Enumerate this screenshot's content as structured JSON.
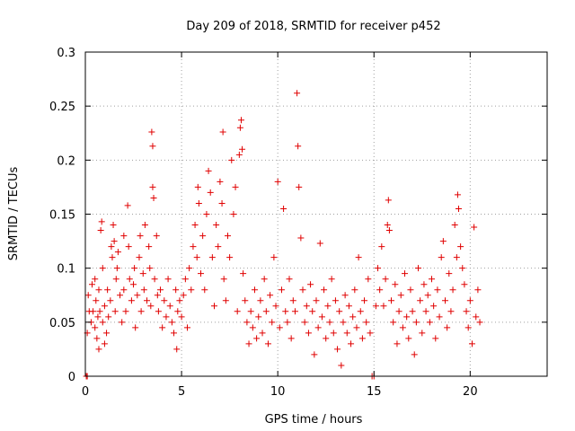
{
  "chart_data": {
    "type": "scatter",
    "title": "Day 209 of 2018, SRMTID for receiver p452",
    "xlabel": "GPS time / hours",
    "ylabel": "SRMTID / TECUs",
    "xlim": [
      0,
      24
    ],
    "ylim": [
      0,
      0.3
    ],
    "x_ticks": [
      0,
      5,
      10,
      15,
      20
    ],
    "x_tick_labels": [
      "0",
      "5",
      "10",
      "15",
      "20"
    ],
    "y_ticks": [
      0,
      0.05,
      0.1,
      0.15,
      0.2,
      0.25,
      0.3
    ],
    "y_tick_labels": [
      "0",
      "0.05",
      "0.1",
      "0.15",
      "0.2",
      "0.25",
      "0.3"
    ],
    "grid": true,
    "marker": "+",
    "color": "#e00000",
    "series": [
      {
        "name": "SRMTID",
        "points": [
          [
            0.05,
            0.0
          ],
          [
            0.1,
            0.0
          ],
          [
            0.1,
            0.04
          ],
          [
            0.15,
            0.075
          ],
          [
            0.2,
            0.06
          ],
          [
            0.3,
            0.05
          ],
          [
            0.35,
            0.085
          ],
          [
            0.4,
            0.06
          ],
          [
            0.5,
            0.045
          ],
          [
            0.5,
            0.09
          ],
          [
            0.55,
            0.07
          ],
          [
            0.6,
            0.035
          ],
          [
            0.65,
            0.055
          ],
          [
            0.7,
            0.025
          ],
          [
            0.7,
            0.08
          ],
          [
            0.75,
            0.06
          ],
          [
            0.8,
            0.135
          ],
          [
            0.85,
            0.143
          ],
          [
            0.9,
            0.05
          ],
          [
            0.9,
            0.1
          ],
          [
            1.0,
            0.065
          ],
          [
            1.0,
            0.03
          ],
          [
            1.1,
            0.04
          ],
          [
            1.15,
            0.08
          ],
          [
            1.2,
            0.055
          ],
          [
            1.3,
            0.07
          ],
          [
            1.35,
            0.12
          ],
          [
            1.4,
            0.11
          ],
          [
            1.45,
            0.14
          ],
          [
            1.5,
            0.125
          ],
          [
            1.55,
            0.06
          ],
          [
            1.6,
            0.09
          ],
          [
            1.65,
            0.1
          ],
          [
            1.7,
            0.115
          ],
          [
            1.8,
            0.075
          ],
          [
            1.9,
            0.05
          ],
          [
            2.0,
            0.08
          ],
          [
            2.0,
            0.13
          ],
          [
            2.1,
            0.06
          ],
          [
            2.2,
            0.158
          ],
          [
            2.25,
            0.12
          ],
          [
            2.3,
            0.09
          ],
          [
            2.4,
            0.07
          ],
          [
            2.5,
            0.085
          ],
          [
            2.55,
            0.1
          ],
          [
            2.6,
            0.045
          ],
          [
            2.7,
            0.075
          ],
          [
            2.8,
            0.11
          ],
          [
            2.85,
            0.13
          ],
          [
            2.9,
            0.06
          ],
          [
            3.0,
            0.095
          ],
          [
            3.05,
            0.08
          ],
          [
            3.1,
            0.14
          ],
          [
            3.2,
            0.07
          ],
          [
            3.3,
            0.12
          ],
          [
            3.35,
            0.1
          ],
          [
            3.4,
            0.065
          ],
          [
            3.45,
            0.226
          ],
          [
            3.5,
            0.213
          ],
          [
            3.5,
            0.175
          ],
          [
            3.55,
            0.165
          ],
          [
            3.6,
            0.09
          ],
          [
            3.7,
            0.13
          ],
          [
            3.75,
            0.075
          ],
          [
            3.8,
            0.06
          ],
          [
            3.9,
            0.08
          ],
          [
            4.0,
            0.045
          ],
          [
            4.1,
            0.07
          ],
          [
            4.2,
            0.055
          ],
          [
            4.3,
            0.09
          ],
          [
            4.4,
            0.065
          ],
          [
            4.5,
            0.05
          ],
          [
            4.6,
            0.04
          ],
          [
            4.7,
            0.08
          ],
          [
            4.75,
            0.025
          ],
          [
            4.8,
            0.06
          ],
          [
            4.9,
            0.07
          ],
          [
            5.0,
            0.055
          ],
          [
            5.1,
            0.075
          ],
          [
            5.2,
            0.09
          ],
          [
            5.3,
            0.045
          ],
          [
            5.4,
            0.1
          ],
          [
            5.5,
            0.08
          ],
          [
            5.6,
            0.12
          ],
          [
            5.7,
            0.14
          ],
          [
            5.8,
            0.11
          ],
          [
            5.85,
            0.175
          ],
          [
            5.9,
            0.16
          ],
          [
            6.0,
            0.095
          ],
          [
            6.1,
            0.13
          ],
          [
            6.2,
            0.08
          ],
          [
            6.3,
            0.15
          ],
          [
            6.4,
            0.19
          ],
          [
            6.5,
            0.17
          ],
          [
            6.6,
            0.11
          ],
          [
            6.7,
            0.065
          ],
          [
            6.8,
            0.14
          ],
          [
            6.9,
            0.12
          ],
          [
            7.0,
            0.18
          ],
          [
            7.1,
            0.16
          ],
          [
            7.15,
            0.226
          ],
          [
            7.2,
            0.09
          ],
          [
            7.3,
            0.07
          ],
          [
            7.4,
            0.13
          ],
          [
            7.5,
            0.11
          ],
          [
            7.6,
            0.2
          ],
          [
            7.7,
            0.15
          ],
          [
            7.8,
            0.175
          ],
          [
            7.9,
            0.06
          ],
          [
            8.0,
            0.205
          ],
          [
            8.05,
            0.23
          ],
          [
            8.1,
            0.237
          ],
          [
            8.15,
            0.21
          ],
          [
            8.2,
            0.095
          ],
          [
            8.3,
            0.07
          ],
          [
            8.4,
            0.05
          ],
          [
            8.5,
            0.03
          ],
          [
            8.6,
            0.06
          ],
          [
            8.7,
            0.045
          ],
          [
            8.8,
            0.08
          ],
          [
            8.9,
            0.035
          ],
          [
            9.0,
            0.055
          ],
          [
            9.1,
            0.07
          ],
          [
            9.2,
            0.04
          ],
          [
            9.3,
            0.09
          ],
          [
            9.4,
            0.06
          ],
          [
            9.5,
            0.03
          ],
          [
            9.6,
            0.075
          ],
          [
            9.7,
            0.05
          ],
          [
            9.8,
            0.11
          ],
          [
            9.9,
            0.065
          ],
          [
            10.0,
            0.18
          ],
          [
            10.1,
            0.045
          ],
          [
            10.2,
            0.08
          ],
          [
            10.3,
            0.155
          ],
          [
            10.4,
            0.06
          ],
          [
            10.5,
            0.05
          ],
          [
            10.6,
            0.09
          ],
          [
            10.7,
            0.035
          ],
          [
            10.8,
            0.07
          ],
          [
            10.9,
            0.06
          ],
          [
            11.0,
            0.262
          ],
          [
            11.05,
            0.213
          ],
          [
            11.1,
            0.175
          ],
          [
            11.2,
            0.128
          ],
          [
            11.3,
            0.08
          ],
          [
            11.4,
            0.05
          ],
          [
            11.5,
            0.065
          ],
          [
            11.6,
            0.04
          ],
          [
            11.7,
            0.085
          ],
          [
            11.8,
            0.06
          ],
          [
            11.9,
            0.02
          ],
          [
            12.0,
            0.07
          ],
          [
            12.1,
            0.045
          ],
          [
            12.2,
            0.123
          ],
          [
            12.3,
            0.055
          ],
          [
            12.4,
            0.08
          ],
          [
            12.5,
            0.035
          ],
          [
            12.6,
            0.065
          ],
          [
            12.7,
            0.05
          ],
          [
            12.8,
            0.09
          ],
          [
            12.9,
            0.04
          ],
          [
            13.0,
            0.07
          ],
          [
            13.1,
            0.025
          ],
          [
            13.2,
            0.06
          ],
          [
            13.3,
            0.01
          ],
          [
            13.4,
            0.05
          ],
          [
            13.5,
            0.075
          ],
          [
            13.6,
            0.04
          ],
          [
            13.7,
            0.065
          ],
          [
            13.8,
            0.03
          ],
          [
            13.9,
            0.055
          ],
          [
            14.0,
            0.08
          ],
          [
            14.1,
            0.045
          ],
          [
            14.2,
            0.11
          ],
          [
            14.3,
            0.06
          ],
          [
            14.4,
            0.035
          ],
          [
            14.5,
            0.07
          ],
          [
            14.6,
            0.05
          ],
          [
            14.7,
            0.09
          ],
          [
            14.8,
            0.04
          ],
          [
            14.9,
            0.0
          ],
          [
            15.0,
            0.0
          ],
          [
            15.1,
            0.065
          ],
          [
            15.2,
            0.1
          ],
          [
            15.3,
            0.08
          ],
          [
            15.4,
            0.12
          ],
          [
            15.5,
            0.065
          ],
          [
            15.6,
            0.09
          ],
          [
            15.7,
            0.14
          ],
          [
            15.75,
            0.163
          ],
          [
            15.8,
            0.135
          ],
          [
            15.9,
            0.07
          ],
          [
            16.0,
            0.05
          ],
          [
            16.1,
            0.085
          ],
          [
            16.2,
            0.03
          ],
          [
            16.3,
            0.06
          ],
          [
            16.4,
            0.075
          ],
          [
            16.5,
            0.045
          ],
          [
            16.6,
            0.095
          ],
          [
            16.7,
            0.055
          ],
          [
            16.8,
            0.035
          ],
          [
            16.9,
            0.08
          ],
          [
            17.0,
            0.06
          ],
          [
            17.1,
            0.02
          ],
          [
            17.2,
            0.05
          ],
          [
            17.3,
            0.1
          ],
          [
            17.4,
            0.07
          ],
          [
            17.5,
            0.04
          ],
          [
            17.6,
            0.085
          ],
          [
            17.7,
            0.06
          ],
          [
            17.8,
            0.075
          ],
          [
            17.9,
            0.05
          ],
          [
            18.0,
            0.09
          ],
          [
            18.1,
            0.065
          ],
          [
            18.2,
            0.035
          ],
          [
            18.3,
            0.08
          ],
          [
            18.4,
            0.055
          ],
          [
            18.5,
            0.11
          ],
          [
            18.6,
            0.125
          ],
          [
            18.7,
            0.07
          ],
          [
            18.8,
            0.045
          ],
          [
            18.9,
            0.095
          ],
          [
            19.0,
            0.06
          ],
          [
            19.1,
            0.08
          ],
          [
            19.2,
            0.14
          ],
          [
            19.3,
            0.11
          ],
          [
            19.35,
            0.168
          ],
          [
            19.4,
            0.155
          ],
          [
            19.5,
            0.12
          ],
          [
            19.6,
            0.1
          ],
          [
            19.7,
            0.085
          ],
          [
            19.8,
            0.06
          ],
          [
            19.9,
            0.045
          ],
          [
            20.0,
            0.07
          ],
          [
            20.1,
            0.03
          ],
          [
            20.2,
            0.138
          ],
          [
            20.3,
            0.055
          ],
          [
            20.4,
            0.08
          ],
          [
            20.5,
            0.05
          ]
        ]
      }
    ]
  }
}
